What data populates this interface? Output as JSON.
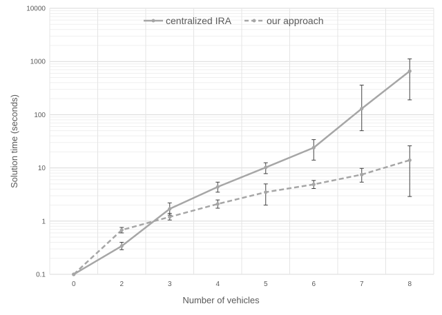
{
  "chart_data": {
    "type": "line",
    "title": "",
    "xlabel": "Number of vehicles",
    "ylabel": "Solution time (seconds)",
    "y_scale": "log",
    "ylim": [
      0.1,
      10000
    ],
    "x_categories": [
      "0",
      "2",
      "3",
      "4",
      "5",
      "6",
      "7",
      "8"
    ],
    "y_ticks": [
      "0.1",
      "1",
      "10",
      "100",
      "1000",
      "10000"
    ],
    "grid": true,
    "legend_position": "top",
    "series": [
      {
        "name": "centralized IRA",
        "line_style": "solid",
        "marker": "circle",
        "color": "#a6a6a6",
        "values": [
          0.1,
          0.34,
          1.7,
          4.4,
          10.2,
          24,
          130,
          660
        ],
        "error_low": [
          0.1,
          0.29,
          1.3,
          3.5,
          7.8,
          14,
          50,
          190
        ],
        "error_high": [
          0.1,
          0.4,
          2.2,
          5.4,
          12.5,
          34,
          360,
          1120
        ]
      },
      {
        "name": "our approach",
        "line_style": "dashed",
        "marker": "circle",
        "color": "#a6a6a6",
        "values": [
          0.1,
          0.68,
          1.2,
          2.1,
          3.5,
          4.9,
          7.5,
          14
        ],
        "error_low": [
          0.1,
          0.6,
          1.05,
          1.75,
          2.0,
          4.1,
          5.4,
          2.9
        ],
        "error_high": [
          0.1,
          0.76,
          1.4,
          2.5,
          5.0,
          5.8,
          9.8,
          26
        ]
      }
    ]
  }
}
